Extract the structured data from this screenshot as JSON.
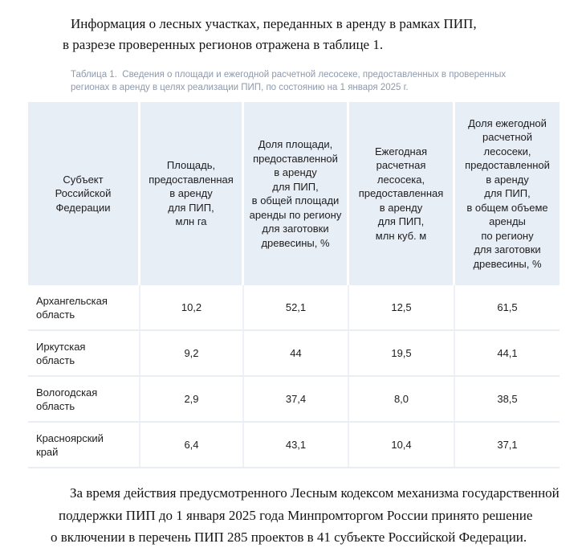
{
  "intro": {
    "lines": [
      "Информация о лесных участках, переданных в аренду в рамках ПИП,",
      "в разрезе проверенных регионов отражена в таблице 1."
    ]
  },
  "table_caption": "Таблица 1.  Сведения о площади и ежегодной расчетной лесосеке, предоставленных в проверенных регионах в аренду в целях реализации ПИП, по состоянию на 1 января 2025 г.",
  "table": {
    "columns": [
      {
        "label": "Субъект\nРоссийской\nФедерации"
      },
      {
        "label": "Площадь,\nпредоставленная\nв аренду\nдля ПИП,\nмлн га"
      },
      {
        "label": "Доля площади,\nпредоставленной\nв аренду\nдля ПИП,\nв общей площади\nаренды по региону\nдля заготовки\nдревесины, %"
      },
      {
        "label": "Ежегодная\nрасчетная\nлесосека,\nпредоставленная\nв аренду\nдля ПИП,\nмлн куб. м"
      },
      {
        "label": "Доля ежегодной\nрасчетной\nлесосеки,\nпредоставленной\nв аренду\nдля ПИП,\nв общем объеме\nаренды\nпо региону\nдля заготовки\nдревесины, %"
      }
    ],
    "rows": [
      {
        "region": "Архангельская область",
        "area": "10,2",
        "area_share": "52,1",
        "cut": "12,5",
        "cut_share": "61,5"
      },
      {
        "region": "Иркутская область",
        "area": "9,2",
        "area_share": "44",
        "cut": "19,5",
        "cut_share": "44,1"
      },
      {
        "region": "Вологодская область",
        "area": "2,9",
        "area_share": "37,4",
        "cut": "8,0",
        "cut_share": "38,5"
      },
      {
        "region": "Красноярский край",
        "area": "6,4",
        "area_share": "43,1",
        "cut": "10,4",
        "cut_share": "37,1"
      }
    ]
  },
  "outro": {
    "lines": [
      "За время действия предусмотренного Лесным кодексом механизма государственной",
      "поддержки ПИП до 1 января 2025 года Минпромторгом России принято решение",
      "о включении в перечень ПИП 285 проектов в 41 субъекте Российской Федерации."
    ]
  },
  "colors": {
    "header_bg": "#e8eef5",
    "header_separator": "#ffffff",
    "body_separator": "#e9eef5",
    "caption_text": "#8e9aad",
    "body_text": "#1d1d1f",
    "paragraph_text": "#141414",
    "page_bg": "#ffffff"
  }
}
